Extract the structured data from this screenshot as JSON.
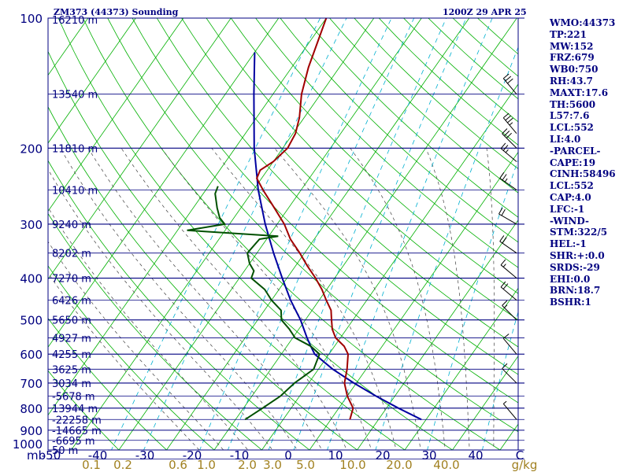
{
  "header": {
    "station": "ZM373 (44373) Sounding",
    "time": "1200Z 29 APR 25"
  },
  "indices": [
    "WMO:44373",
    "TP:221",
    "MW:152",
    "FRZ:679",
    "WB0:750",
    "RH:43.7",
    "MAXT:17.6",
    "TH:5600",
    "L57:7.6",
    "LCL:552",
    "LI:4.0",
    "-PARCEL-",
    "CAPE:19",
    "CINH:58496",
    "LCL:552",
    "CAP:4.0",
    "LFC:-1",
    "-WIND-",
    "STM:322/5",
    "HEL:-1",
    "SHR:+:0.0",
    "SRDS:-29",
    "EHI:0.0",
    "BRN:18.7",
    "BSHR:1"
  ],
  "colors": {
    "isobar": "#000080",
    "isotherm": "#00b000",
    "dry_adiabat": "#00b000",
    "moist_adiabat": "#404040",
    "mixing_ratio": "#00b0d0",
    "temperature": "#a00000",
    "dewpoint": "#005000",
    "parcel": "#0000a0",
    "text": "#000080",
    "mixing_ratio_label": "#a08020"
  },
  "chart_data": {
    "type": "skew-t",
    "pressure_ticks": [
      "100",
      "200",
      "300",
      "400",
      "500",
      "600",
      "700",
      "800",
      "900",
      "1000"
    ],
    "pressure_tick_values": [
      100,
      200,
      300,
      400,
      500,
      600,
      700,
      800,
      900,
      1000
    ],
    "x_axis_unit": "mb",
    "temperature_ticks": [
      "-50",
      "-40",
      "-30",
      "-20",
      "-10",
      "0",
      "10",
      "20",
      "30",
      "40",
      "C"
    ],
    "temperature_tick_values": [
      -50,
      -40,
      -30,
      -20,
      -10,
      0,
      10,
      20,
      30,
      40
    ],
    "mixing_ratio_labels": [
      "0.1",
      "0.2",
      "0.6",
      "1.0",
      "2.0",
      "3.0",
      "5.0",
      "10.0",
      "20.0",
      "40.0",
      "g/kg"
    ],
    "mixing_ratio_values": [
      0.1,
      0.2,
      0.6,
      1.0,
      2.0,
      3.0,
      5.0,
      10.0,
      20.0,
      40.0
    ],
    "height_labels": [
      {
        "p": 100,
        "h": "16210 m"
      },
      {
        "p": 150,
        "h": "13540 m"
      },
      {
        "p": 200,
        "h": "11810 m"
      },
      {
        "p": 250,
        "h": "10410 m"
      },
      {
        "p": 300,
        "h": "9240 m"
      },
      {
        "p": 350,
        "h": "8202 m"
      },
      {
        "p": 400,
        "h": "7270 m"
      },
      {
        "p": 450,
        "h": "6426 m"
      },
      {
        "p": 500,
        "h": "5650 m"
      },
      {
        "p": 550,
        "h": "4927 m"
      },
      {
        "p": 600,
        "h": "4255 m"
      },
      {
        "p": 650,
        "h": "3625 m"
      },
      {
        "p": 700,
        "h": "3034 m"
      },
      {
        "p": 750,
        "h": "-5678 m"
      },
      {
        "p": 800,
        "h": "13944 m"
      },
      {
        "p": 850,
        "h": "-22258 m"
      },
      {
        "p": 900,
        "h": "-14665 m"
      },
      {
        "p": 950,
        "h": "-6695 m"
      },
      {
        "p": 1000,
        "h": "50 m"
      }
    ],
    "temperature": [
      {
        "p": 850,
        "t": 4.0
      },
      {
        "p": 800,
        "t": 3.0
      },
      {
        "p": 750,
        "t": 0.0
      },
      {
        "p": 700,
        "t": -2.5
      },
      {
        "p": 650,
        "t": -4.0
      },
      {
        "p": 600,
        "t": -6.0
      },
      {
        "p": 575,
        "t": -8.0
      },
      {
        "p": 550,
        "t": -11.0
      },
      {
        "p": 525,
        "t": -13.0
      },
      {
        "p": 500,
        "t": -14.5
      },
      {
        "p": 475,
        "t": -16.0
      },
      {
        "p": 450,
        "t": -18.5
      },
      {
        "p": 425,
        "t": -21.0
      },
      {
        "p": 400,
        "t": -24.0
      },
      {
        "p": 375,
        "t": -27.5
      },
      {
        "p": 350,
        "t": -31.0
      },
      {
        "p": 325,
        "t": -35.0
      },
      {
        "p": 300,
        "t": -38.5
      },
      {
        "p": 275,
        "t": -43.0
      },
      {
        "p": 250,
        "t": -48.0
      },
      {
        "p": 235,
        "t": -51.0
      },
      {
        "p": 225,
        "t": -51.5
      },
      {
        "p": 215,
        "t": -50.0
      },
      {
        "p": 200,
        "t": -49.0
      },
      {
        "p": 185,
        "t": -49.5
      },
      {
        "p": 170,
        "t": -51.0
      },
      {
        "p": 150,
        "t": -54.0
      },
      {
        "p": 130,
        "t": -56.5
      },
      {
        "p": 100,
        "t": -60.0
      }
    ],
    "dewpoint": [
      {
        "p": 850,
        "t": -18.0
      },
      {
        "p": 800,
        "t": -16.0
      },
      {
        "p": 750,
        "t": -14.0
      },
      {
        "p": 700,
        "t": -13.0
      },
      {
        "p": 650,
        "t": -11.0
      },
      {
        "p": 600,
        "t": -12.0
      },
      {
        "p": 575,
        "t": -15.0
      },
      {
        "p": 550,
        "t": -19.5
      },
      {
        "p": 525,
        "t": -22.0
      },
      {
        "p": 500,
        "t": -25.0
      },
      {
        "p": 475,
        "t": -26.5
      },
      {
        "p": 450,
        "t": -30.0
      },
      {
        "p": 425,
        "t": -33.0
      },
      {
        "p": 400,
        "t": -37.5
      },
      {
        "p": 385,
        "t": -38.0
      },
      {
        "p": 370,
        "t": -40.0
      },
      {
        "p": 350,
        "t": -42.0
      },
      {
        "p": 325,
        "t": -41.5
      },
      {
        "p": 320,
        "t": -38.0
      },
      {
        "p": 310,
        "t": -58.0
      },
      {
        "p": 300,
        "t": -51.0
      },
      {
        "p": 290,
        "t": -53.0
      },
      {
        "p": 275,
        "t": -55.0
      },
      {
        "p": 255,
        "t": -57.5
      },
      {
        "p": 245,
        "t": -58.0
      }
    ],
    "parcel": [
      {
        "p": 850,
        "t": 19.0
      },
      {
        "p": 800,
        "t": 12.5
      },
      {
        "p": 750,
        "t": 6.0
      },
      {
        "p": 700,
        "t": -0.5
      },
      {
        "p": 650,
        "t": -7.0
      },
      {
        "p": 600,
        "t": -13.0
      },
      {
        "p": 575,
        "t": -15.0
      },
      {
        "p": 550,
        "t": -17.0
      },
      {
        "p": 500,
        "t": -21.0
      },
      {
        "p": 450,
        "t": -26.0
      },
      {
        "p": 400,
        "t": -31.0
      },
      {
        "p": 350,
        "t": -36.5
      },
      {
        "p": 300,
        "t": -42.5
      },
      {
        "p": 250,
        "t": -49.0
      },
      {
        "p": 200,
        "t": -56.0
      },
      {
        "p": 150,
        "t": -64.0
      },
      {
        "p": 120,
        "t": -70.0
      }
    ],
    "wind_barbs": [
      {
        "p": 150,
        "dir": 320,
        "kt": 30
      },
      {
        "p": 185,
        "dir": 320,
        "kt": 35
      },
      {
        "p": 200,
        "dir": 315,
        "kt": 30
      },
      {
        "p": 215,
        "dir": 310,
        "kt": 25
      },
      {
        "p": 250,
        "dir": 305,
        "kt": 25
      },
      {
        "p": 300,
        "dir": 300,
        "kt": 20
      },
      {
        "p": 350,
        "dir": 305,
        "kt": 20
      },
      {
        "p": 400,
        "dir": 310,
        "kt": 15
      },
      {
        "p": 450,
        "dir": 310,
        "kt": 20
      },
      {
        "p": 500,
        "dir": 315,
        "kt": 15
      },
      {
        "p": 600,
        "dir": 320,
        "kt": 10
      },
      {
        "p": 700,
        "dir": 315,
        "kt": 10
      },
      {
        "p": 850,
        "dir": 320,
        "kt": 5
      }
    ]
  }
}
